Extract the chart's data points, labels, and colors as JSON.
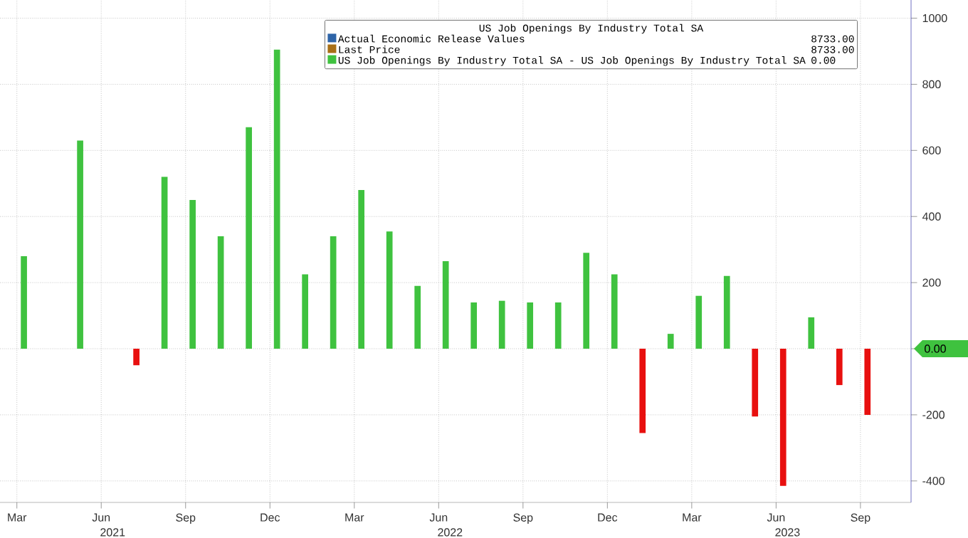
{
  "chart_data": {
    "type": "bar",
    "legend_title": "US Job Openings By Industry Total SA",
    "x": [
      "2021-03",
      "2021-04",
      "2021-05",
      "2021-06",
      "2021-07",
      "2021-08",
      "2021-09",
      "2021-10",
      "2021-11",
      "2021-12",
      "2022-01",
      "2022-02",
      "2022-03",
      "2022-04",
      "2022-05",
      "2022-06",
      "2022-07",
      "2022-08",
      "2022-09",
      "2022-10",
      "2022-11",
      "2022-12",
      "2023-01",
      "2023-02",
      "2023-03",
      "2023-04",
      "2023-05",
      "2023-06",
      "2023-07",
      "2023-08",
      "2023-09",
      "2023-10"
    ],
    "series": [
      {
        "name": "Actual Economic Release Values",
        "color": "#2e64a8",
        "values": [
          null,
          null,
          null,
          null,
          null,
          null,
          null,
          null,
          null,
          null,
          null,
          null,
          null,
          null,
          null,
          null,
          null,
          null,
          null,
          null,
          null,
          null,
          null,
          null,
          null,
          null,
          null,
          null,
          null,
          null,
          null,
          null
        ]
      },
      {
        "name": "Last Price",
        "color": "#a86f16",
        "values": [
          null,
          null,
          null,
          null,
          null,
          null,
          null,
          null,
          null,
          null,
          null,
          null,
          null,
          null,
          null,
          null,
          null,
          null,
          null,
          null,
          null,
          null,
          null,
          null,
          null,
          null,
          null,
          null,
          null,
          null,
          null,
          null
        ]
      },
      {
        "name": "US Job Openings By Industry Total SA - US Job Openings By Industry Total SA",
        "color": "#3fc23f",
        "values": [
          280,
          0,
          630,
          0,
          -50,
          520,
          450,
          340,
          670,
          905,
          225,
          340,
          480,
          355,
          190,
          265,
          140,
          145,
          140,
          140,
          290,
          225,
          -255,
          45,
          160,
          220,
          -205,
          -415,
          95,
          -110,
          -200,
          0
        ],
        "colors": [
          "#3fc23f",
          "#3fc23f",
          "#3fc23f",
          "#3fc23f",
          "#e8100f",
          "#3fc23f",
          "#3fc23f",
          "#3fc23f",
          "#3fc23f",
          "#3fc23f",
          "#3fc23f",
          "#3fc23f",
          "#3fc23f",
          "#3fc23f",
          "#3fc23f",
          "#3fc23f",
          "#3fc23f",
          "#3fc23f",
          "#3fc23f",
          "#3fc23f",
          "#3fc23f",
          "#3fc23f",
          "#e8100f",
          "#3fc23f",
          "#3fc23f",
          "#3fc23f",
          "#e8100f",
          "#e8100f",
          "#3fc23f",
          "#e8100f",
          "#e8100f",
          "#3fc23f"
        ]
      }
    ],
    "xlim": [
      "2021-02-13",
      "2023-10-25"
    ],
    "xticks": [
      {
        "value": "2021-03",
        "label": "Mar"
      },
      {
        "value": "2021-06",
        "label": "Jun"
      },
      {
        "value": "2021-09",
        "label": "Sep"
      },
      {
        "value": "2021-12",
        "label": "Dec"
      },
      {
        "value": "2022-03",
        "label": "Mar"
      },
      {
        "value": "2022-06",
        "label": "Jun"
      },
      {
        "value": "2022-09",
        "label": "Sep"
      },
      {
        "value": "2022-12",
        "label": "Dec"
      },
      {
        "value": "2023-03",
        "label": "Mar"
      },
      {
        "value": "2023-06",
        "label": "Jun"
      },
      {
        "value": "2023-09",
        "label": "Sep"
      }
    ],
    "ylim": [
      -465,
      1055
    ],
    "yticks": [
      -400,
      -200,
      {
        "value": 0,
        "label": null
      },
      200,
      400,
      600,
      800,
      1000
    ],
    "grid": true,
    "legend": "top",
    "annotations": [
      "2021",
      "2022",
      "2023",
      "8733.00",
      "8733.00",
      "0.00",
      "0.00"
    ]
  }
}
